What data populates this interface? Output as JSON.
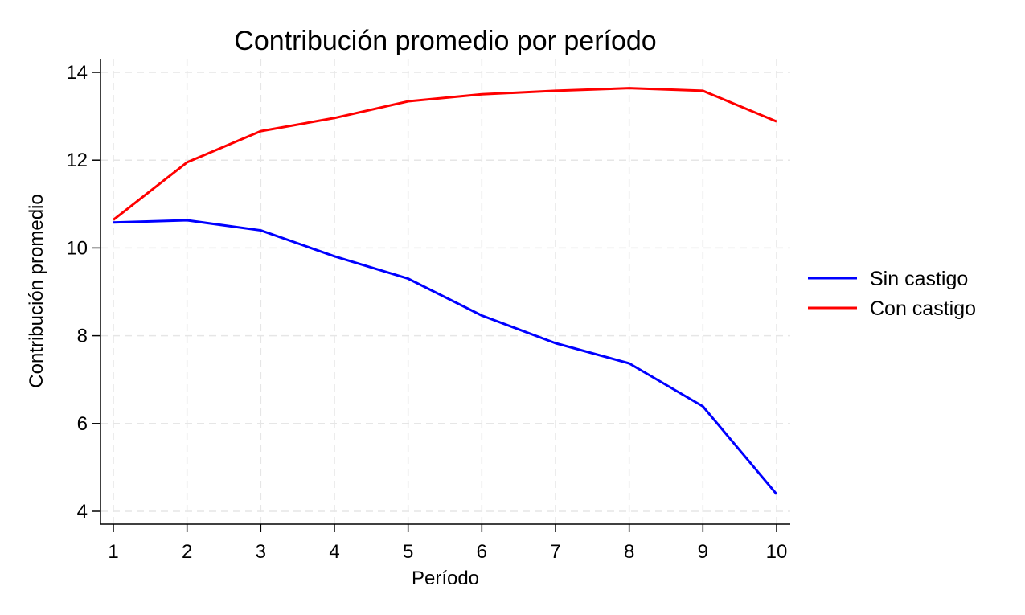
{
  "chart_data": {
    "type": "line",
    "title": "Contribución promedio por período",
    "xlabel": "Período",
    "ylabel": "Contribución promedio",
    "x": [
      1,
      2,
      3,
      4,
      5,
      6,
      7,
      8,
      9,
      10
    ],
    "xlim": [
      1,
      10
    ],
    "ylim": [
      4,
      14
    ],
    "xticks": [
      "1",
      "2",
      "3",
      "4",
      "5",
      "6",
      "7",
      "8",
      "9",
      "10"
    ],
    "yticks": [
      "4",
      "6",
      "8",
      "10",
      "12",
      "14"
    ],
    "grid": true,
    "legend_position": "right",
    "series": [
      {
        "name": "Sin castigo",
        "color": "#0000ff",
        "values": [
          10.58,
          10.63,
          10.4,
          9.81,
          9.3,
          8.46,
          7.83,
          7.37,
          6.39,
          4.39
        ]
      },
      {
        "name": "Con castigo",
        "color": "#ff0000",
        "values": [
          10.64,
          11.95,
          12.66,
          12.96,
          13.34,
          13.5,
          13.58,
          13.64,
          13.58,
          12.88
        ]
      }
    ]
  }
}
